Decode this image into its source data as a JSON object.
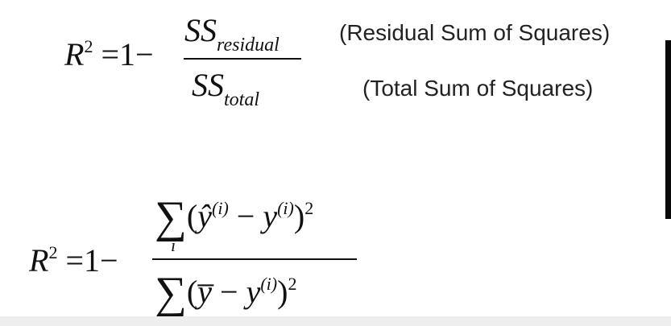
{
  "equation1": {
    "lhs_symbol": "R",
    "lhs_power": "2",
    "equals_one_minus": "=1−",
    "numerator_main": "SS",
    "numerator_sub": "residual",
    "denominator_main": "SS",
    "denominator_sub": "total"
  },
  "annotations": {
    "residual": "(Residual Sum of Squares)",
    "total": "(Total Sum of Squares)"
  },
  "equation2": {
    "lhs_symbol": "R",
    "lhs_power": "2",
    "equals_one_minus": "=1−",
    "sum_symbol": "∑",
    "numerator_open": "(",
    "numerator_yhat": "ŷ",
    "numerator_minus": " − ",
    "numerator_y": "y",
    "numerator_close": ")",
    "superscript_i": "(i)",
    "power": "2",
    "sum_index": "i",
    "denominator_ybar": "y̅"
  }
}
